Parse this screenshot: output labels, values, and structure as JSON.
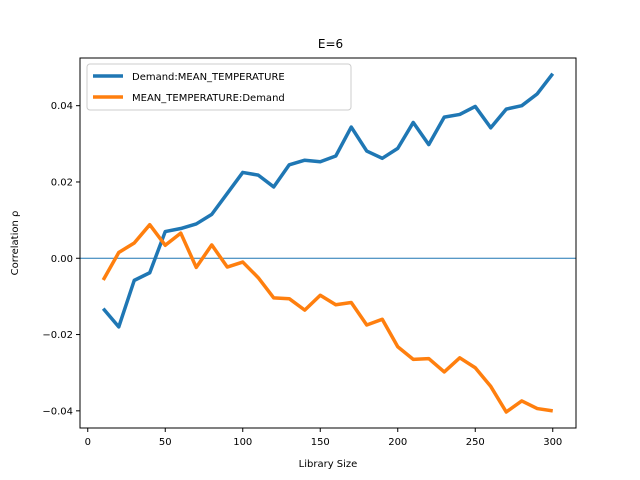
{
  "chart_data": {
    "type": "line",
    "title": "E=6",
    "xlabel": "Library Size",
    "ylabel": "Correlation ρ",
    "xlim": [
      -5,
      315
    ],
    "ylim": [
      -0.0445,
      0.0525
    ],
    "xticks": [
      0,
      50,
      100,
      150,
      200,
      250,
      300
    ],
    "xtick_labels": [
      "0",
      "50",
      "100",
      "150",
      "200",
      "250",
      "300"
    ],
    "yticks": [
      -0.04,
      -0.02,
      0.0,
      0.02,
      0.04
    ],
    "ytick_labels": [
      "−0.04",
      "−0.02",
      "0.00",
      "0.02",
      "0.04"
    ],
    "grid": false,
    "legend_position": "upper-left",
    "hline": {
      "y": 0.0,
      "color": "#1f77b4"
    },
    "x": [
      10,
      20,
      30,
      40,
      50,
      60,
      70,
      80,
      90,
      100,
      110,
      120,
      130,
      140,
      150,
      160,
      170,
      180,
      190,
      200,
      210,
      220,
      230,
      240,
      250,
      260,
      270,
      280,
      290,
      300
    ],
    "series": [
      {
        "name": "Demand:MEAN_TEMPERATURE",
        "color": "#1f77b4",
        "values": [
          -0.0132,
          -0.018,
          -0.0058,
          -0.0038,
          0.007,
          0.0078,
          0.009,
          0.0115,
          0.017,
          0.0225,
          0.0218,
          0.0187,
          0.0245,
          0.0257,
          0.0253,
          0.0268,
          0.0344,
          0.0281,
          0.0262,
          0.0288,
          0.0356,
          0.0298,
          0.037,
          0.0377,
          0.0398,
          0.0342,
          0.0391,
          0.04,
          0.0431,
          0.0484
        ]
      },
      {
        "name": "MEAN_TEMPERATURE:Demand",
        "color": "#ff7f0e",
        "values": [
          -0.0057,
          0.0015,
          0.004,
          0.0088,
          0.0034,
          0.0066,
          -0.0024,
          0.0035,
          -0.0023,
          -0.001,
          -0.0051,
          -0.0104,
          -0.0106,
          -0.0136,
          -0.0097,
          -0.0122,
          -0.0116,
          -0.0175,
          -0.016,
          -0.0232,
          -0.0265,
          -0.0263,
          -0.0298,
          -0.0261,
          -0.0287,
          -0.0336,
          -0.0403,
          -0.0374,
          -0.0394,
          -0.04
        ]
      }
    ]
  }
}
